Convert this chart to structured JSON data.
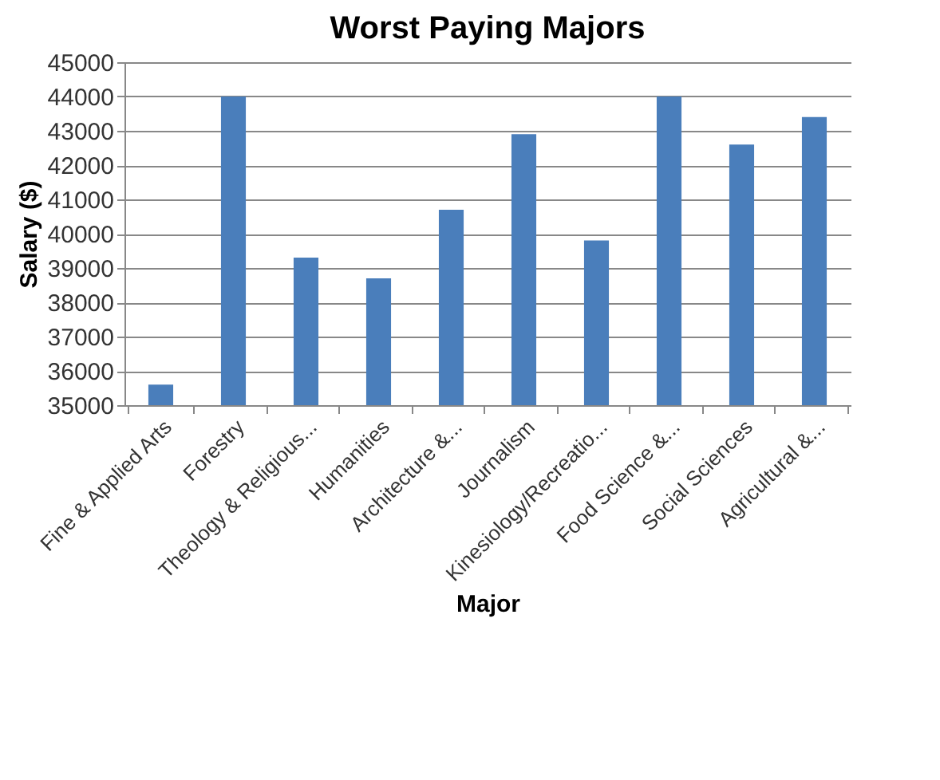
{
  "chart_data": {
    "type": "bar",
    "title": "Worst Paying Majors",
    "xlabel": "Major",
    "ylabel": "Salary ($)",
    "categories": [
      "Fine & Applied Arts",
      "Forestry",
      "Theology & Religious...",
      "Humanities",
      "Architecture &...",
      "Journalism",
      "Kinesiology/Recreatio...",
      "Food Science &...",
      "Social Sciences",
      "Agricultural &..."
    ],
    "values": [
      35600,
      44000,
      39300,
      38700,
      40700,
      42900,
      39800,
      44000,
      42600,
      43400
    ],
    "color": "#4a7ebb",
    "ylim": [
      35000,
      45000
    ],
    "yticks": [
      35000,
      36000,
      37000,
      38000,
      39000,
      40000,
      41000,
      42000,
      43000,
      44000,
      45000
    ],
    "grid": "y"
  }
}
